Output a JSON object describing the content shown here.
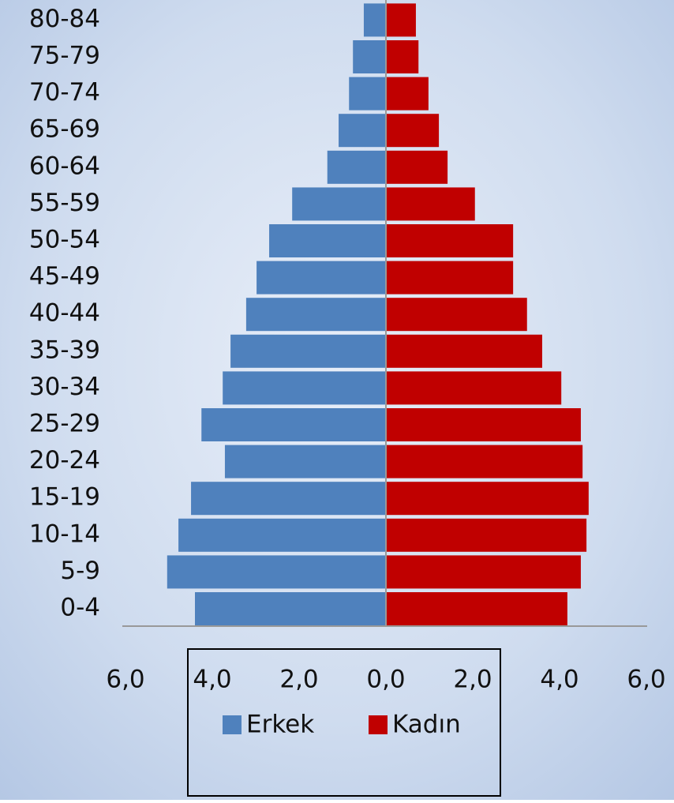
{
  "chart_data": {
    "type": "pyramid",
    "categories": [
      "0-4",
      "5-9",
      "10-14",
      "15-19",
      "20-24",
      "25-29",
      "30-34",
      "35-39",
      "40-44",
      "45-49",
      "50-54",
      "55-59",
      "60-64",
      "65-69",
      "70-74",
      "75-79",
      "80-84"
    ],
    "series": [
      {
        "name": "Erkek",
        "color": "#4f81bd",
        "side": "left",
        "values": [
          4.4,
          5.04,
          4.78,
          4.49,
          3.71,
          4.25,
          3.76,
          3.58,
          3.22,
          2.98,
          2.69,
          2.16,
          1.35,
          1.09,
          0.85,
          0.76,
          0.51
        ]
      },
      {
        "name": "Kadın",
        "color": "#c00000",
        "side": "right",
        "values": [
          4.18,
          4.49,
          4.62,
          4.67,
          4.53,
          4.49,
          4.04,
          3.6,
          3.25,
          2.93,
          2.93,
          2.05,
          1.42,
          1.22,
          0.98,
          0.75,
          0.69
        ]
      }
    ],
    "xlim": [
      0,
      6
    ],
    "xticks": [
      {
        "value": 0,
        "label": "0,0"
      },
      {
        "value": 2,
        "label": "2,0"
      },
      {
        "value": 4,
        "label": "4,0"
      },
      {
        "value": 6,
        "label": "6,0"
      }
    ]
  }
}
